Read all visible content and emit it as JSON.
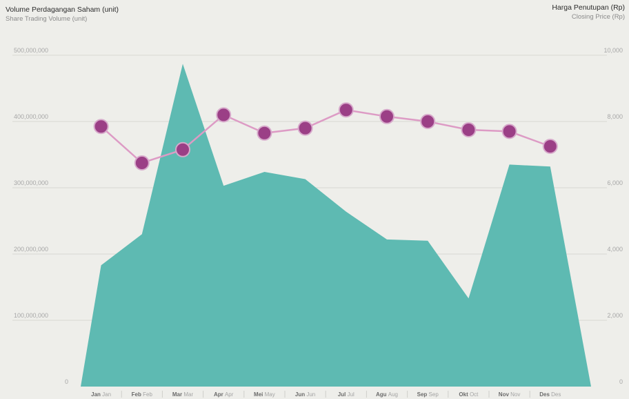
{
  "chart_data": {
    "type": "area",
    "y_axis_left": {
      "title": "Volume Perdagangan Saham (unit)",
      "subtitle": "Share Trading Volume (unit)",
      "ticks": [
        "0",
        "100,000,000",
        "200,000,000",
        "300,000,000",
        "400,000,000",
        "500,000,000"
      ],
      "ylim": [
        0,
        500000000
      ]
    },
    "y_axis_right": {
      "title": "Harga Penutupan (Rp)",
      "subtitle": "Closing Price (Rp)",
      "ticks": [
        "0",
        "2,000",
        "4,000",
        "6,000",
        "8,000",
        "10,000"
      ],
      "ylim": [
        0,
        10000
      ]
    },
    "categories": [
      {
        "main": "Jan",
        "sub": "Jan"
      },
      {
        "main": "Feb",
        "sub": "Feb"
      },
      {
        "main": "Mar",
        "sub": "Mar"
      },
      {
        "main": "Apr",
        "sub": "Apr"
      },
      {
        "main": "Mei",
        "sub": "May"
      },
      {
        "main": "Jun",
        "sub": "Jun"
      },
      {
        "main": "Jul",
        "sub": "Jul"
      },
      {
        "main": "Agu",
        "sub": "Aug"
      },
      {
        "main": "Sep",
        "sub": "Sep"
      },
      {
        "main": "Okt",
        "sub": "Oct"
      },
      {
        "main": "Nov",
        "sub": "Nov"
      },
      {
        "main": "Des",
        "sub": "Des"
      }
    ],
    "volume": {
      "x": [
        0,
        0.5,
        1.5,
        2.5,
        3.5,
        4.5,
        5.5,
        6.5,
        7.5,
        8.5,
        9.5,
        10.5,
        11.5,
        12.5
      ],
      "y": [
        0,
        183000000,
        230000000,
        487000000,
        303000000,
        324000000,
        313000000,
        264000000,
        222000000,
        220000000,
        133000000,
        335000000,
        332000000,
        0
      ]
    },
    "closing_price": {
      "values": [
        7850,
        6750,
        7150,
        8200,
        7650,
        7800,
        8350,
        8150,
        8000,
        7750,
        7700,
        7250
      ]
    },
    "colors": {
      "area": "#5ebab2",
      "line": "#dd9bc5",
      "marker": "#9b3f86",
      "marker_stroke": "#d7a9cb",
      "grid": "#d8d8d3"
    },
    "grid": true
  }
}
